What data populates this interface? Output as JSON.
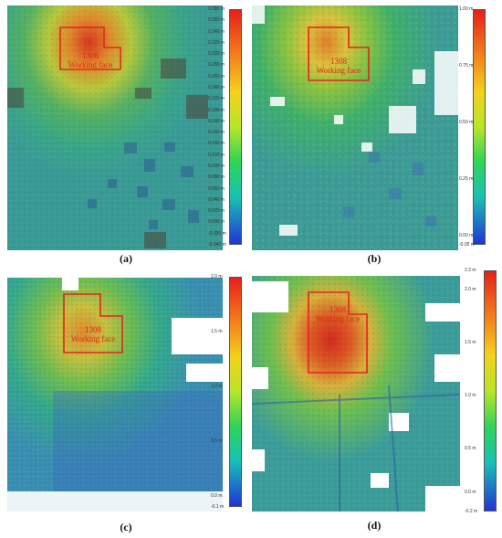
{
  "panels": [
    {
      "id": "a",
      "caption": "(a)",
      "label_line1": "1308",
      "label_line2": "Working face",
      "colorbar_ticks": [
        "0.380 m",
        "0.360 m",
        "0.340 m",
        "0.320 m",
        "0.300 m",
        "0.280 m",
        "0.260 m",
        "0.240 m",
        "0.220 m",
        "0.200 m",
        "0.180 m",
        "0.160 m",
        "0.140 m",
        "0.120 m",
        "0.100 m",
        "0.080 m",
        "0.060 m",
        "0.040 m",
        "0.020 m",
        "0.000 m",
        "-0.020 m",
        "-0.040 m"
      ]
    },
    {
      "id": "b",
      "caption": "(b)",
      "label_line1": "1308",
      "label_line2": "Working face",
      "colorbar_ticks": [
        "1.00 m",
        "0.75 m",
        "0.50 m",
        "0.25 m",
        "0.00 m",
        "-0.05 m"
      ]
    },
    {
      "id": "c",
      "caption": "(c)",
      "label_line1": "1308",
      "label_line2": "Working face",
      "colorbar_ticks": [
        "2.0 m",
        "1.5 m",
        "1.0 m",
        "0.5 m",
        "0.0 m",
        "-0.1 m"
      ]
    },
    {
      "id": "d",
      "caption": "(d)",
      "label_line1": "1308",
      "label_line2": "Working face",
      "colorbar_ticks": [
        "2.2 m",
        "2.0 m",
        "1.5 m",
        "1.0 m",
        "0.5 m",
        "0.0 m",
        "-0.2 m"
      ]
    }
  ],
  "colors": {
    "working_face_outline": "#e1261c",
    "colormap_top": "#e5201a",
    "colormap_bottom": "#2233d6"
  }
}
